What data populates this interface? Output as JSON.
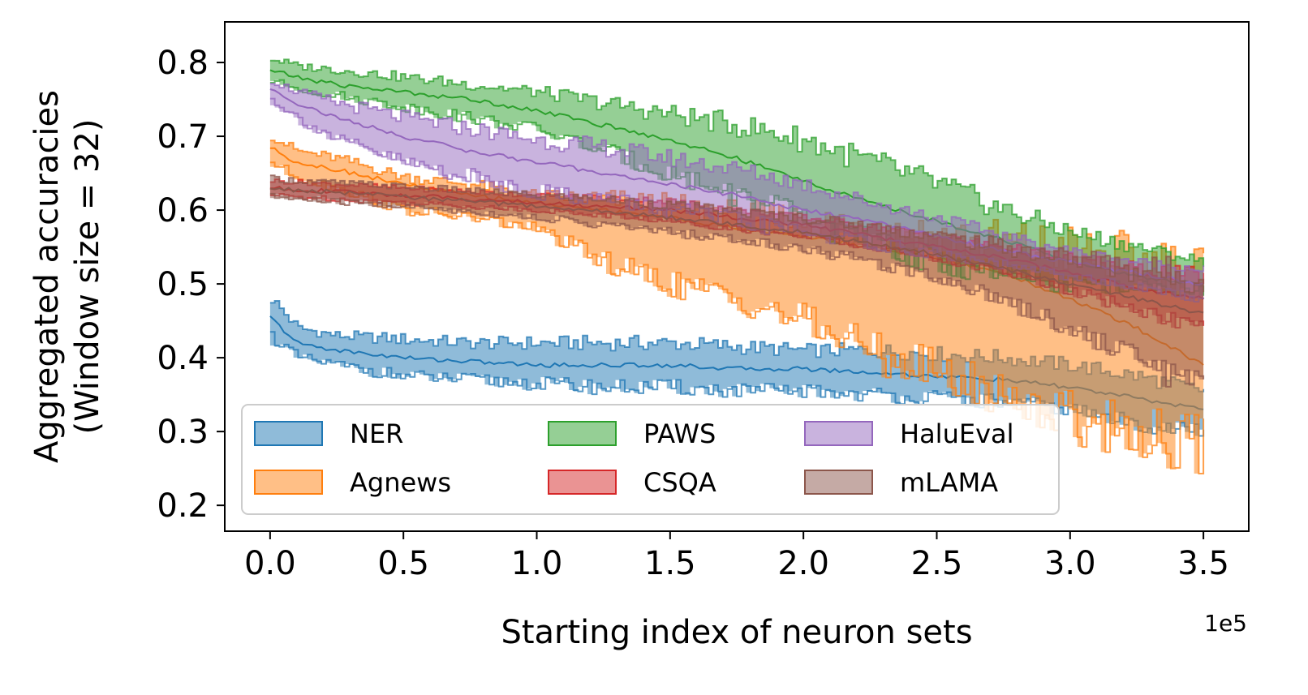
{
  "chart_data": {
    "type": "area",
    "title": "",
    "xlabel": "Starting index of neuron sets",
    "ylabel_lines": [
      "Aggregated accuracies",
      "(Window size = 32)"
    ],
    "x_offset_label": "1e5",
    "xlim": [
      -0.17,
      3.67
    ],
    "ylim": [
      0.165,
      0.855
    ],
    "x_ticks": [
      0.0,
      0.5,
      1.0,
      1.5,
      2.0,
      2.5,
      3.0,
      3.5
    ],
    "x_tick_labels": [
      "0.0",
      "0.5",
      "1.0",
      "1.5",
      "2.0",
      "2.5",
      "3.0",
      "3.5"
    ],
    "y_ticks": [
      0.2,
      0.3,
      0.4,
      0.5,
      0.6,
      0.7,
      0.8
    ],
    "y_tick_labels": [
      "0.2",
      "0.3",
      "0.4",
      "0.5",
      "0.6",
      "0.7",
      "0.8"
    ],
    "legend_position": "lower-left",
    "series": [
      {
        "name": "NER",
        "color": "#1f77b4",
        "x": [
          0.0,
          0.1,
          0.25,
          0.5,
          0.75,
          1.0,
          1.25,
          1.5,
          1.75,
          2.0,
          2.25,
          2.5,
          2.75,
          3.0,
          3.25,
          3.5
        ],
        "mean": [
          0.455,
          0.42,
          0.41,
          0.4,
          0.395,
          0.39,
          0.39,
          0.39,
          0.385,
          0.385,
          0.38,
          0.375,
          0.37,
          0.36,
          0.345,
          0.33
        ],
        "upper": [
          0.48,
          0.44,
          0.43,
          0.425,
          0.42,
          0.42,
          0.42,
          0.42,
          0.415,
          0.41,
          0.41,
          0.405,
          0.4,
          0.39,
          0.375,
          0.355
        ],
        "lower": [
          0.43,
          0.4,
          0.39,
          0.375,
          0.37,
          0.365,
          0.36,
          0.36,
          0.355,
          0.355,
          0.35,
          0.345,
          0.34,
          0.33,
          0.31,
          0.3
        ]
      },
      {
        "name": "Agnews",
        "color": "#ff7f0e",
        "x": [
          0.0,
          0.1,
          0.25,
          0.5,
          0.75,
          1.0,
          1.25,
          1.5,
          1.75,
          2.0,
          2.25,
          2.5,
          2.75,
          3.0,
          3.25,
          3.5
        ],
        "mean": [
          0.685,
          0.665,
          0.655,
          0.635,
          0.62,
          0.61,
          0.6,
          0.59,
          0.575,
          0.565,
          0.55,
          0.535,
          0.515,
          0.48,
          0.44,
          0.39
        ],
        "upper": [
          0.7,
          0.68,
          0.67,
          0.645,
          0.635,
          0.62,
          0.615,
          0.605,
          0.595,
          0.585,
          0.575,
          0.565,
          0.555,
          0.545,
          0.53,
          0.52
        ],
        "lower": [
          0.665,
          0.645,
          0.63,
          0.6,
          0.59,
          0.575,
          0.53,
          0.5,
          0.48,
          0.45,
          0.41,
          0.38,
          0.35,
          0.32,
          0.3,
          0.28
        ]
      },
      {
        "name": "PAWS",
        "color": "#2ca02c",
        "x": [
          0.0,
          0.1,
          0.25,
          0.5,
          0.75,
          1.0,
          1.25,
          1.5,
          1.75,
          2.0,
          2.25,
          2.5,
          2.75,
          3.0,
          3.25,
          3.5
        ],
        "mean": [
          0.79,
          0.78,
          0.77,
          0.76,
          0.75,
          0.735,
          0.715,
          0.695,
          0.67,
          0.64,
          0.61,
          0.585,
          0.56,
          0.53,
          0.51,
          0.5
        ],
        "upper": [
          0.805,
          0.795,
          0.79,
          0.78,
          0.77,
          0.76,
          0.745,
          0.73,
          0.715,
          0.695,
          0.665,
          0.635,
          0.6,
          0.57,
          0.55,
          0.53
        ],
        "lower": [
          0.775,
          0.765,
          0.755,
          0.74,
          0.725,
          0.71,
          0.68,
          0.65,
          0.62,
          0.59,
          0.555,
          0.53,
          0.51,
          0.5,
          0.495,
          0.49
        ]
      },
      {
        "name": "CSQA",
        "color": "#d62728",
        "x": [
          0.0,
          0.1,
          0.25,
          0.5,
          0.75,
          1.0,
          1.25,
          1.5,
          1.75,
          2.0,
          2.25,
          2.5,
          2.75,
          3.0,
          3.25,
          3.5
        ],
        "mean": [
          0.63,
          0.628,
          0.625,
          0.62,
          0.615,
          0.61,
          0.605,
          0.6,
          0.59,
          0.58,
          0.565,
          0.55,
          0.535,
          0.515,
          0.495,
          0.48
        ],
        "upper": [
          0.64,
          0.638,
          0.635,
          0.63,
          0.625,
          0.62,
          0.617,
          0.612,
          0.6,
          0.59,
          0.578,
          0.565,
          0.55,
          0.535,
          0.52,
          0.51
        ],
        "lower": [
          0.62,
          0.618,
          0.615,
          0.61,
          0.605,
          0.6,
          0.593,
          0.585,
          0.575,
          0.565,
          0.55,
          0.535,
          0.515,
          0.49,
          0.465,
          0.44
        ]
      },
      {
        "name": "HaluEval",
        "color": "#9467bd",
        "x": [
          0.0,
          0.1,
          0.25,
          0.5,
          0.75,
          1.0,
          1.25,
          1.5,
          1.75,
          2.0,
          2.25,
          2.5,
          2.75,
          3.0,
          3.25,
          3.5
        ],
        "mean": [
          0.765,
          0.745,
          0.725,
          0.7,
          0.68,
          0.665,
          0.65,
          0.635,
          0.62,
          0.6,
          0.585,
          0.565,
          0.545,
          0.53,
          0.515,
          0.5
        ],
        "upper": [
          0.775,
          0.76,
          0.745,
          0.725,
          0.71,
          0.695,
          0.685,
          0.67,
          0.655,
          0.635,
          0.61,
          0.59,
          0.565,
          0.545,
          0.53,
          0.52
        ],
        "lower": [
          0.75,
          0.725,
          0.695,
          0.665,
          0.645,
          0.625,
          0.615,
          0.6,
          0.585,
          0.57,
          0.555,
          0.54,
          0.525,
          0.51,
          0.495,
          0.48
        ]
      },
      {
        "name": "mLAMA",
        "color": "#8c564b",
        "x": [
          0.0,
          0.1,
          0.25,
          0.5,
          0.75,
          1.0,
          1.25,
          1.5,
          1.75,
          2.0,
          2.25,
          2.5,
          2.75,
          3.0,
          3.25,
          3.5
        ],
        "mean": [
          0.63,
          0.627,
          0.624,
          0.618,
          0.612,
          0.605,
          0.598,
          0.59,
          0.58,
          0.57,
          0.555,
          0.54,
          0.52,
          0.5,
          0.48,
          0.46
        ],
        "upper": [
          0.643,
          0.64,
          0.637,
          0.632,
          0.626,
          0.62,
          0.615,
          0.607,
          0.598,
          0.59,
          0.578,
          0.565,
          0.55,
          0.535,
          0.52,
          0.51
        ],
        "lower": [
          0.618,
          0.615,
          0.611,
          0.605,
          0.598,
          0.59,
          0.58,
          0.57,
          0.56,
          0.548,
          0.53,
          0.51,
          0.48,
          0.44,
          0.4,
          0.36
        ]
      }
    ]
  }
}
